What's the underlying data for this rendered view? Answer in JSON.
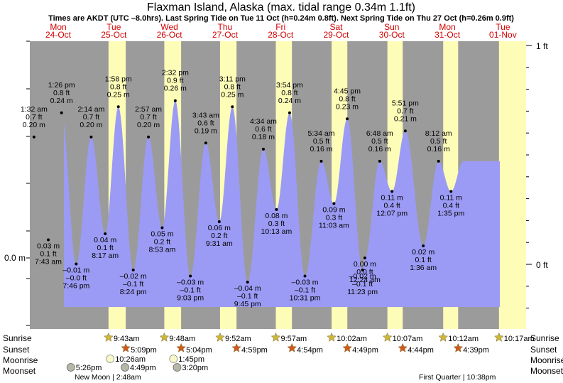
{
  "title": "Flaxman Island, Alaska (max. tidal range 0.34m 1.1ft)",
  "subtitle": "Times are AKDT (UTC –8.0hrs). Last Spring Tide on Tue 11 Oct (h=0.24m 0.8ft). Next Spring Tide on Thu 27 Oct (h=0.26m 0.9ft)",
  "colors": {
    "night": "#9b9b9b",
    "day": "#fdfdb8",
    "tide": "#9b9bf5",
    "day_label": "#d40000",
    "sunrise": "#ccb63c",
    "sunset": "#d05a1e",
    "moonrise": "#f8f8c8",
    "moonset": "#b7b7a7"
  },
  "days": [
    {
      "dow": "Mon",
      "date": "24-Oct"
    },
    {
      "dow": "Tue",
      "date": "25-Oct"
    },
    {
      "dow": "Wed",
      "date": "26-Oct"
    },
    {
      "dow": "Thu",
      "date": "27-Oct"
    },
    {
      "dow": "Fri",
      "date": "28-Oct"
    },
    {
      "dow": "Sat",
      "date": "29-Oct"
    },
    {
      "dow": "Sun",
      "date": "30-Oct"
    },
    {
      "dow": "Mon",
      "date": "31-Oct"
    },
    {
      "dow": "Tue",
      "date": "01-Nov"
    }
  ],
  "chart_data": {
    "type": "area",
    "title": "Flaxman Island, Alaska (max. tidal range 0.34m 1.1ft)",
    "ylabel_left": "0.0 m",
    "ylabel_right_ticks": [
      "1 ft",
      "0 ft"
    ],
    "x_start": "24-Oct 12:00",
    "x_end": "01-Nov 14:00",
    "ylim_m": [
      -0.07,
      0.33
    ],
    "daylight": [
      {
        "day": "25-Oct",
        "sunrise": "09:43",
        "sunset": "17:09"
      },
      {
        "day": "26-Oct",
        "sunrise": "09:48",
        "sunset": "17:04"
      },
      {
        "day": "27-Oct",
        "sunrise": "09:52",
        "sunset": "16:59"
      },
      {
        "day": "28-Oct",
        "sunrise": "09:57",
        "sunset": "16:54"
      },
      {
        "day": "29-Oct",
        "sunrise": "10:02",
        "sunset": "16:49"
      },
      {
        "day": "30-Oct",
        "sunrise": "10:07",
        "sunset": "16:44"
      },
      {
        "day": "31-Oct",
        "sunrise": "10:12",
        "sunset": "16:39"
      },
      {
        "day": "01-Nov",
        "sunrise": "10:17",
        "sunset": ""
      }
    ],
    "extremes": [
      {
        "d": 0,
        "time": "1:32 am",
        "h_m": 0.2,
        "ft": "0.7 ft",
        "m": "0.20 m",
        "type": "high"
      },
      {
        "d": 0,
        "time": "7:43 am",
        "h_m": 0.03,
        "ft": "0.1 ft",
        "m": "0.03 m",
        "type": "low"
      },
      {
        "d": 0,
        "time": "1:26 pm",
        "h_m": 0.24,
        "ft": "0.8 ft",
        "m": "0.24 m",
        "type": "high"
      },
      {
        "d": 0,
        "time": "7:46 pm",
        "h_m": -0.01,
        "ft": "–0.0 ft",
        "m": "–0.01 m",
        "type": "low"
      },
      {
        "d": 1,
        "time": "2:14 am",
        "h_m": 0.2,
        "ft": "0.7 ft",
        "m": "0.20 m",
        "type": "high"
      },
      {
        "d": 1,
        "time": "8:17 am",
        "h_m": 0.04,
        "ft": "0.1 ft",
        "m": "0.04 m",
        "type": "low"
      },
      {
        "d": 1,
        "time": "1:58 pm",
        "h_m": 0.25,
        "ft": "0.8 ft",
        "m": "0.25 m",
        "type": "high"
      },
      {
        "d": 1,
        "time": "8:24 pm",
        "h_m": -0.02,
        "ft": "–0.1 ft",
        "m": "–0.02 m",
        "type": "low"
      },
      {
        "d": 2,
        "time": "2:57 am",
        "h_m": 0.2,
        "ft": "0.7 ft",
        "m": "0.20 m",
        "type": "high"
      },
      {
        "d": 2,
        "time": "8:53 am",
        "h_m": 0.05,
        "ft": "0.2 ft",
        "m": "0.05 m",
        "type": "low"
      },
      {
        "d": 2,
        "time": "2:32 pm",
        "h_m": 0.26,
        "ft": "0.9 ft",
        "m": "0.26 m",
        "type": "high"
      },
      {
        "d": 2,
        "time": "9:03 pm",
        "h_m": -0.03,
        "ft": "–0.1 ft",
        "m": "–0.03 m",
        "type": "low"
      },
      {
        "d": 3,
        "time": "3:43 am",
        "h_m": 0.19,
        "ft": "0.6 ft",
        "m": "0.19 m",
        "type": "high"
      },
      {
        "d": 3,
        "time": "9:31 am",
        "h_m": 0.06,
        "ft": "0.2 ft",
        "m": "0.06 m",
        "type": "low"
      },
      {
        "d": 3,
        "time": "3:11 pm",
        "h_m": 0.25,
        "ft": "0.8 ft",
        "m": "0.25 m",
        "type": "high"
      },
      {
        "d": 3,
        "time": "9:45 pm",
        "h_m": -0.04,
        "ft": "–0.1 ft",
        "m": "–0.04 m",
        "type": "low"
      },
      {
        "d": 4,
        "time": "4:34 am",
        "h_m": 0.18,
        "ft": "0.6 ft",
        "m": "0.18 m",
        "type": "high"
      },
      {
        "d": 4,
        "time": "10:13 am",
        "h_m": 0.08,
        "ft": "0.3 ft",
        "m": "0.08 m",
        "type": "low"
      },
      {
        "d": 4,
        "time": "3:54 pm",
        "h_m": 0.24,
        "ft": "0.8 ft",
        "m": "0.24 m",
        "type": "high"
      },
      {
        "d": 4,
        "time": "10:31 pm",
        "h_m": -0.03,
        "ft": "–0.1 ft",
        "m": "–0.03 m",
        "type": "low"
      },
      {
        "d": 5,
        "time": "5:34 am",
        "h_m": 0.16,
        "ft": "0.5 ft",
        "m": "0.16 m",
        "type": "high"
      },
      {
        "d": 5,
        "time": "11:03 am",
        "h_m": 0.09,
        "ft": "0.3 ft",
        "m": "0.09 m",
        "type": "low"
      },
      {
        "d": 5,
        "time": "4:45 pm",
        "h_m": 0.23,
        "ft": "0.8 ft",
        "m": "0.23 m",
        "type": "high"
      },
      {
        "d": 5,
        "time": "11:23 pm",
        "h_m": -0.02,
        "ft": "–0.1 ft",
        "m": "–0.02 m",
        "type": "low"
      },
      {
        "d": 6,
        "time": "6:48 am",
        "h_m": 0.16,
        "ft": "0.5 ft",
        "m": "0.16 m",
        "type": "high"
      },
      {
        "d": 6,
        "time": "12:07 pm",
        "h_m": 0.11,
        "ft": "0.4 ft",
        "m": "0.11 m",
        "type": "low"
      },
      {
        "d": 6,
        "time": "12:24 am",
        "h_m": 0.0,
        "ft": "0.0 ft",
        "m": "0.00 m",
        "type": "low"
      },
      {
        "d": 6,
        "time": "5:51 pm",
        "h_m": 0.21,
        "ft": "0.7 ft",
        "m": "0.21 m",
        "type": "high"
      },
      {
        "d": 7,
        "time": "1:36 am",
        "h_m": 0.02,
        "ft": "0.1 ft",
        "m": "0.02 m",
        "type": "low"
      },
      {
        "d": 7,
        "time": "8:12 am",
        "h_m": 0.16,
        "ft": "0.5 ft",
        "m": "0.16 m",
        "type": "high"
      },
      {
        "d": 7,
        "time": "1:35 pm",
        "h_m": 0.11,
        "ft": "0.4 ft",
        "m": "0.11 m",
        "type": "low"
      }
    ]
  },
  "rows": {
    "labels": [
      "Sunrise",
      "Sunset",
      "Moonrise",
      "Moonset"
    ],
    "sunrise": [
      "9:43am",
      "9:48am",
      "9:52am",
      "9:57am",
      "10:02am",
      "10:07am",
      "10:12am",
      "10:17am"
    ],
    "sunset": [
      "5:09pm",
      "5:04pm",
      "4:59pm",
      "4:54pm",
      "4:49pm",
      "4:44pm",
      "4:39pm"
    ],
    "moonrise": [
      "10:26am",
      "1:45pm"
    ],
    "moonset": [
      "5:26pm",
      "4:49pm",
      "3:20pm"
    ],
    "moon_phases": [
      "New Moon | 2:48am",
      "First Quarter | 10:38pm"
    ]
  }
}
